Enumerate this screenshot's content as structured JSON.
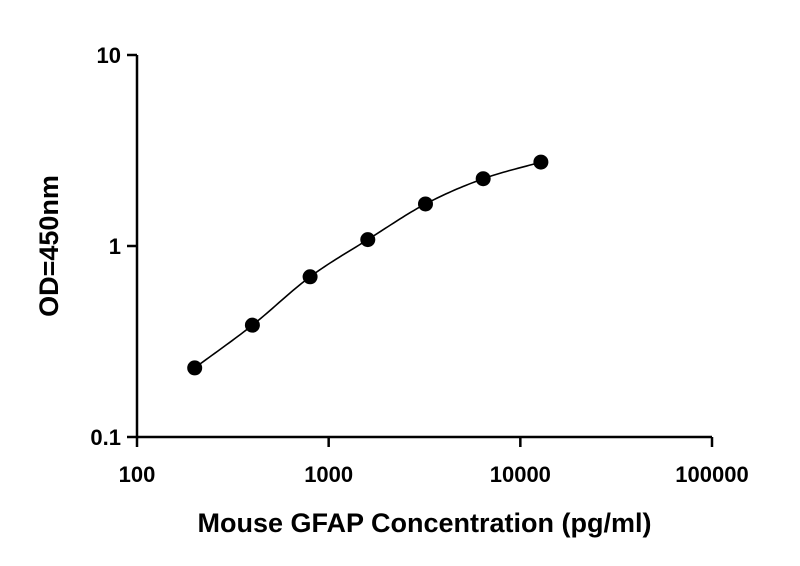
{
  "chart_data": {
    "type": "scatter",
    "title": "",
    "xlabel": "Mouse GFAP Concentration (pg/ml)",
    "ylabel": "OD=450nm",
    "x_scale": "log",
    "y_scale": "log",
    "xlim": [
      100,
      100000
    ],
    "ylim": [
      0.1,
      10
    ],
    "x_ticks": [
      "100",
      "1000",
      "10000",
      "100000"
    ],
    "y_ticks": [
      "0.1",
      "1",
      "10"
    ],
    "grid": false,
    "legend": "none",
    "fitted_curve": true,
    "colors": {
      "points": "#000000",
      "curve": "#000000",
      "axes": "#000000"
    },
    "series": [
      {
        "x": [
          200,
          400,
          800,
          1600,
          3200,
          6400,
          12800
        ],
        "y": [
          0.23,
          0.385,
          0.69,
          1.08,
          1.66,
          2.25,
          2.75
        ]
      }
    ]
  }
}
